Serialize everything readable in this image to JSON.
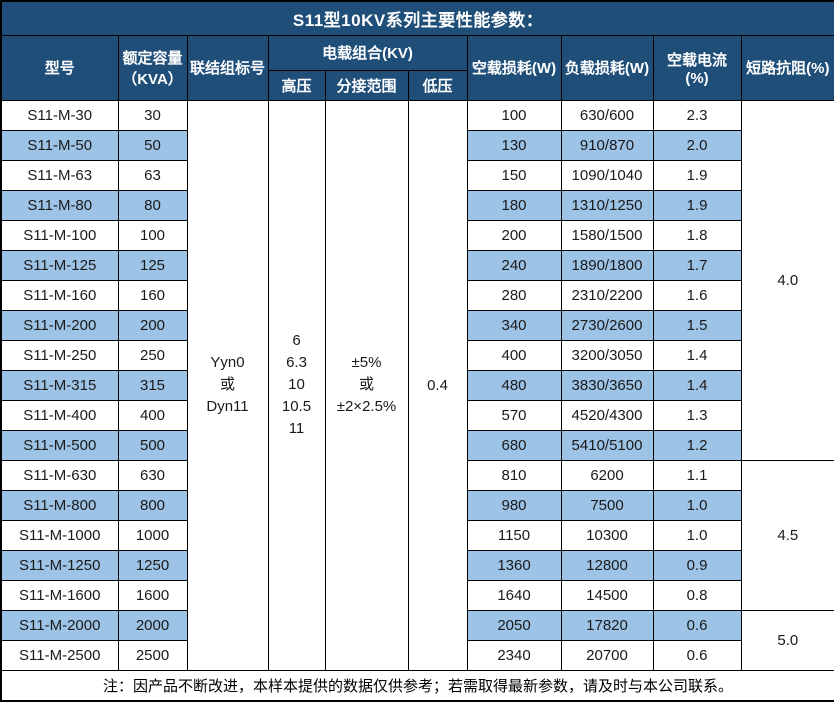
{
  "title": "S11型10KV系列主要性能参数：",
  "table": {
    "header": {
      "model": "型号",
      "capacity": "额定容量\n（KVA）",
      "connection": "联结组标号",
      "voltage_group": "电载组合(KV)",
      "hv": "高压",
      "tap": "分接范围",
      "lv": "低压",
      "no_load_loss": "空载损耗(W)",
      "load_loss": "负载损耗(W)",
      "no_load_current": "空载电流(%)",
      "impedance": "短路抗阻(%)"
    },
    "merged": {
      "connection": "Yyn0\n或\nDyn11",
      "hv": "6\n6.3\n10\n10.5\n11",
      "tap": "±5%\n或\n±2×2.5%",
      "lv": "0.4"
    },
    "rows": [
      {
        "model": "S11-M-30",
        "capacity": "30",
        "no_load_loss": "100",
        "load_loss": "630/600",
        "no_load_current": "2.3"
      },
      {
        "model": "S11-M-50",
        "capacity": "50",
        "no_load_loss": "130",
        "load_loss": "910/870",
        "no_load_current": "2.0"
      },
      {
        "model": "S11-M-63",
        "capacity": "63",
        "no_load_loss": "150",
        "load_loss": "1090/1040",
        "no_load_current": "1.9"
      },
      {
        "model": "S11-M-80",
        "capacity": "80",
        "no_load_loss": "180",
        "load_loss": "1310/1250",
        "no_load_current": "1.9"
      },
      {
        "model": "S11-M-100",
        "capacity": "100",
        "no_load_loss": "200",
        "load_loss": "1580/1500",
        "no_load_current": "1.8"
      },
      {
        "model": "S11-M-125",
        "capacity": "125",
        "no_load_loss": "240",
        "load_loss": "1890/1800",
        "no_load_current": "1.7"
      },
      {
        "model": "S11-M-160",
        "capacity": "160",
        "no_load_loss": "280",
        "load_loss": "2310/2200",
        "no_load_current": "1.6"
      },
      {
        "model": "S11-M-200",
        "capacity": "200",
        "no_load_loss": "340",
        "load_loss": "2730/2600",
        "no_load_current": "1.5"
      },
      {
        "model": "S11-M-250",
        "capacity": "250",
        "no_load_loss": "400",
        "load_loss": "3200/3050",
        "no_load_current": "1.4"
      },
      {
        "model": "S11-M-315",
        "capacity": "315",
        "no_load_loss": "480",
        "load_loss": "3830/3650",
        "no_load_current": "1.4"
      },
      {
        "model": "S11-M-400",
        "capacity": "400",
        "no_load_loss": "570",
        "load_loss": "4520/4300",
        "no_load_current": "1.3"
      },
      {
        "model": "S11-M-500",
        "capacity": "500",
        "no_load_loss": "680",
        "load_loss": "5410/5100",
        "no_load_current": "1.2"
      },
      {
        "model": "S11-M-630",
        "capacity": "630",
        "no_load_loss": "810",
        "load_loss": "6200",
        "no_load_current": "1.1"
      },
      {
        "model": "S11-M-800",
        "capacity": "800",
        "no_load_loss": "980",
        "load_loss": "7500",
        "no_load_current": "1.0"
      },
      {
        "model": "S11-M-1000",
        "capacity": "1000",
        "no_load_loss": "1150",
        "load_loss": "10300",
        "no_load_current": "1.0"
      },
      {
        "model": "S11-M-1250",
        "capacity": "1250",
        "no_load_loss": "1360",
        "load_loss": "12800",
        "no_load_current": "0.9"
      },
      {
        "model": "S11-M-1600",
        "capacity": "1600",
        "no_load_loss": "1640",
        "load_loss": "14500",
        "no_load_current": "0.8"
      },
      {
        "model": "S11-M-2000",
        "capacity": "2000",
        "no_load_loss": "2050",
        "load_loss": "17820",
        "no_load_current": "0.6"
      },
      {
        "model": "S11-M-2500",
        "capacity": "2500",
        "no_load_loss": "2340",
        "load_loss": "20700",
        "no_load_current": "0.6"
      }
    ],
    "impedance_groups": [
      {
        "value": "4.0",
        "span": 12
      },
      {
        "value": "4.5",
        "span": 5
      },
      {
        "value": "5.0",
        "span": 2
      }
    ]
  },
  "footer_note": "注：因产品不断改进，本样本提供的数据仅供参考；若需取得最新参数，请及时与本公司联系。",
  "colors": {
    "header_bg": "#1F4E79",
    "header_text": "#FFFFFF",
    "row_alt_bg": "#9DC3E6",
    "row_bg": "#FFFFFF",
    "border": "#000000"
  }
}
